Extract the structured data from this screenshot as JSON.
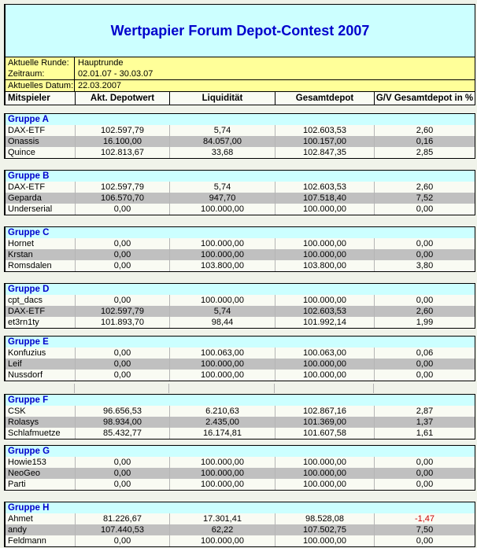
{
  "title": "Wertpapier Forum Depot-Contest 2007",
  "info": {
    "rows": [
      {
        "label": "Aktuelle Runde:",
        "value": "Hauptrunde"
      },
      {
        "label": "Zeitraum:",
        "value": "02.01.07 - 30.03.07"
      },
      {
        "label": "Aktuelles Datum:",
        "value": "22.03.2007"
      }
    ]
  },
  "columns": [
    "Mitspieler",
    "Akt. Depotwert",
    "Liquidität",
    "Gesamtdepot",
    "G/V Gesamtdepot in %"
  ],
  "colors": {
    "accent_blue": "#0000CC",
    "group_header_bg": "#CCFFFF",
    "title_bg": "#CCFFFF",
    "info_bg": "#FFFF99",
    "alt_row_bg": "#C0C0C0",
    "row_bg": "#F9FBF3",
    "negative_value": "#CC0000"
  },
  "spacer_before_group": "Gruppe F",
  "groups": [
    {
      "name": "Gruppe A",
      "rows": [
        {
          "player": "DAX-ETF",
          "values": [
            "102.597,79",
            "5,74",
            "102.603,53",
            "2,60"
          ]
        },
        {
          "player": "Onassis",
          "values": [
            "16.100,00",
            "84.057,00",
            "100.157,00",
            "0,16"
          ]
        },
        {
          "player": "Quince",
          "values": [
            "102.813,67",
            "33,68",
            "102.847,35",
            "2,85"
          ]
        }
      ]
    },
    {
      "name": "Gruppe B",
      "rows": [
        {
          "player": "DAX-ETF",
          "values": [
            "102.597,79",
            "5,74",
            "102.603,53",
            "2,60"
          ]
        },
        {
          "player": "Geparda",
          "values": [
            "106.570,70",
            "947,70",
            "107.518,40",
            "7,52"
          ]
        },
        {
          "player": "Underserial",
          "values": [
            "0,00",
            "100.000,00",
            "100.000,00",
            "0,00"
          ]
        }
      ]
    },
    {
      "name": "Gruppe C",
      "rows": [
        {
          "player": "Hornet",
          "values": [
            "0,00",
            "100.000,00",
            "100.000,00",
            "0,00"
          ]
        },
        {
          "player": "Krstan",
          "values": [
            "0,00",
            "100.000,00",
            "100.000,00",
            "0,00"
          ]
        },
        {
          "player": "Romsdalen",
          "values": [
            "0,00",
            "103.800,00",
            "103.800,00",
            "3,80"
          ]
        }
      ]
    },
    {
      "name": "Gruppe D",
      "rows": [
        {
          "player": "cpt_dacs",
          "values": [
            "0,00",
            "100.000,00",
            "100.000,00",
            "0,00"
          ]
        },
        {
          "player": "DAX-ETF",
          "values": [
            "102.597,79",
            "5,74",
            "102.603,53",
            "2,60"
          ]
        },
        {
          "player": "et3rn1ty",
          "values": [
            "101.893,70",
            "98,44",
            "101.992,14",
            "1,99"
          ]
        }
      ]
    },
    {
      "name": "Gruppe E",
      "rows": [
        {
          "player": "Konfuzius",
          "values": [
            "0,00",
            "100.063,00",
            "100.063,00",
            "0,06"
          ]
        },
        {
          "player": "Leif",
          "values": [
            "0,00",
            "100.000,00",
            "100.000,00",
            "0,00"
          ]
        },
        {
          "player": "Nussdorf",
          "values": [
            "0,00",
            "100.000,00",
            "100.000,00",
            "0,00"
          ]
        }
      ]
    },
    {
      "name": "Gruppe F",
      "rows": [
        {
          "player": "CSK",
          "values": [
            "96.656,53",
            "6.210,63",
            "102.867,16",
            "2,87"
          ]
        },
        {
          "player": "Rolasys",
          "values": [
            "98.934,00",
            "2.435,00",
            "101.369,00",
            "1,37"
          ]
        },
        {
          "player": "Schlafmuetze",
          "values": [
            "85.432,77",
            "16.174,81",
            "101.607,58",
            "1,61"
          ]
        }
      ]
    },
    {
      "name": "Gruppe G",
      "rows": [
        {
          "player": "Howie153",
          "values": [
            "0,00",
            "100.000,00",
            "100.000,00",
            "0,00"
          ]
        },
        {
          "player": "NeoGeo",
          "values": [
            "0,00",
            "100.000,00",
            "100.000,00",
            "0,00"
          ]
        },
        {
          "player": "Parti",
          "values": [
            "0,00",
            "100.000,00",
            "100.000,00",
            "0,00"
          ]
        }
      ]
    },
    {
      "name": "Gruppe H",
      "rows": [
        {
          "player": "Ahmet",
          "values": [
            "81.226,67",
            "17.301,41",
            "98.528,08",
            "-1,47"
          ]
        },
        {
          "player": "andy",
          "values": [
            "107.440,53",
            "62,22",
            "107.502,75",
            "7,50"
          ]
        },
        {
          "player": "Feldmann",
          "values": [
            "0,00",
            "100.000,00",
            "100.000,00",
            "0,00"
          ]
        }
      ]
    }
  ]
}
